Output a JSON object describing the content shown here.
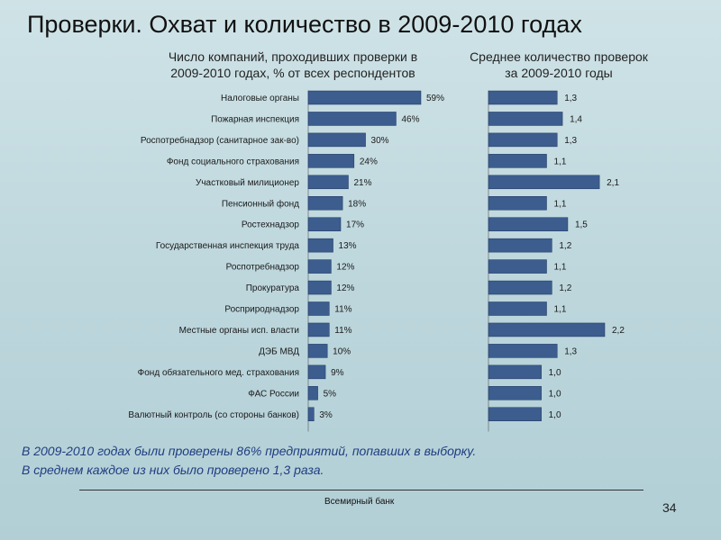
{
  "title": "Проверки. Охват и количество в 2009-2010 годах",
  "notes": [
    "В 2009-2010 годах были проверены 86% предприятий, попавших в выборку.",
    "В среднем каждое из них было проверено 1,3 раза."
  ],
  "footer": {
    "source": "Всемирный банк",
    "page": "34"
  },
  "colors": {
    "bar": "#3c5d8e",
    "bar_edge": "#1d3560",
    "background": "#c4dce1"
  },
  "chart_data": [
    {
      "type": "bar",
      "orientation": "horizontal",
      "title": "Число компаний, проходивших проверки в 2009-2010 годах, % от всех респондентов",
      "title_lines": [
        "Число компаний, проходивших проверки в",
        "2009-2010 годах, % от всех респондентов"
      ],
      "categories": [
        "Налоговые органы",
        "Пожарная инспекция",
        "Роспотребнадзор (санитарное зак-во)",
        "Фонд социального страхования",
        "Участковый милиционер",
        "Пенсионный фонд",
        "Ростехнадзор",
        "Государственная инспекция труда",
        "Роспотребнадзор",
        "Прокуратура",
        "Росприроднадзор",
        "Местные органы исп. власти",
        "ДЭБ МВД",
        "Фонд обязательного мед. страхования",
        "ФАС России",
        "Валютный контроль (со стороны банков)"
      ],
      "values": [
        59,
        46,
        30,
        24,
        21,
        18,
        17,
        13,
        12,
        12,
        11,
        11,
        10,
        9,
        5,
        3
      ],
      "value_labels": [
        "59%",
        "46%",
        "30%",
        "24%",
        "21%",
        "18%",
        "17%",
        "13%",
        "12%",
        "12%",
        "11%",
        "11%",
        "10%",
        "9%",
        "5%",
        "3%"
      ],
      "xlim": [
        0,
        100
      ],
      "grid": false
    },
    {
      "type": "bar",
      "orientation": "horizontal",
      "title": "Среднее количество проверок за 2009-2010 годы",
      "title_lines": [
        "Среднее количество проверок",
        "за 2009-2010 годы"
      ],
      "categories": [
        "Налоговые органы",
        "Пожарная инспекция",
        "Роспотребнадзор (санитарное зак-во)",
        "Фонд социального страхования",
        "Участковый милиционер",
        "Пенсионный фонд",
        "Ростехнадзор",
        "Государственная инспекция труда",
        "Роспотребнадзор",
        "Прокуратура",
        "Росприроднадзор",
        "Местные органы исп. власти",
        "ДЭБ МВД",
        "Фонд обязательного мед. страхования",
        "ФАС России",
        "Валютный контроль (со стороны банков)"
      ],
      "values": [
        1.3,
        1.4,
        1.3,
        1.1,
        2.1,
        1.1,
        1.5,
        1.2,
        1.1,
        1.2,
        1.1,
        2.2,
        1.3,
        1.0,
        1.0,
        1.0
      ],
      "value_labels": [
        "1,3",
        "1,4",
        "1,3",
        "1,1",
        "2,1",
        "1,1",
        "1,5",
        "1,2",
        "1,1",
        "1,2",
        "1,1",
        "2,2",
        "1,3",
        "1,0",
        "1,0",
        "1,0"
      ],
      "xlim": [
        0,
        2.2
      ],
      "grid": false
    }
  ]
}
